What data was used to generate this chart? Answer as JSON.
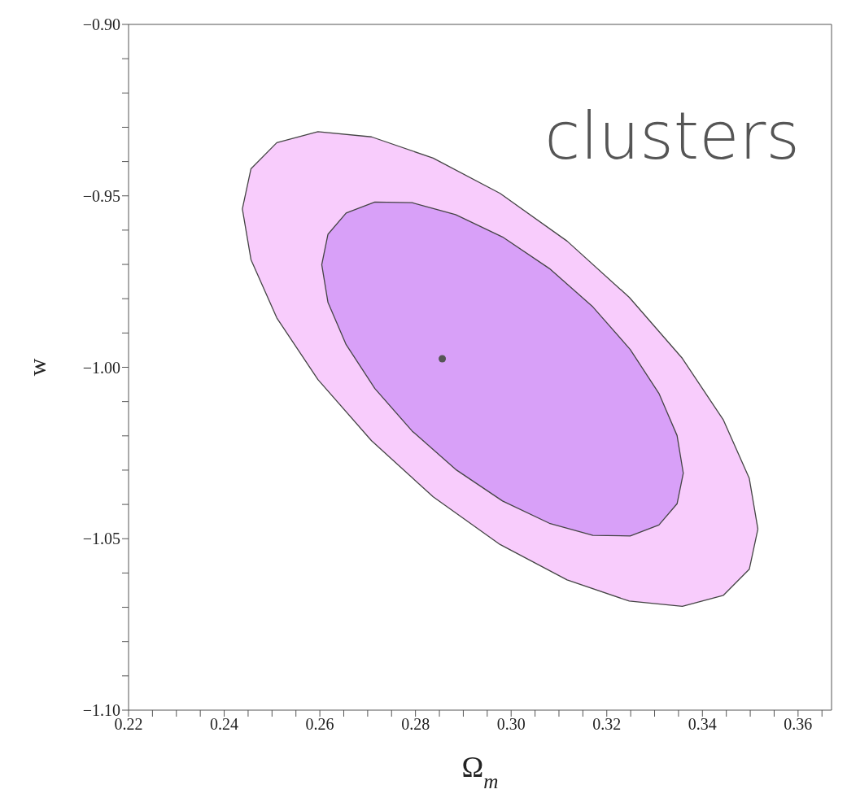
{
  "chart_data": {
    "type": "area",
    "xlabel": "Ω$_{m}$",
    "ylabel": "w",
    "annotations": [
      "clusters"
    ],
    "xlim": [
      0.22,
      0.367
    ],
    "ylim": [
      -1.1,
      -0.9
    ],
    "xticks": [
      0.22,
      {
        "value": 0.225,
        "label": null
      },
      {
        "value": 0.23,
        "label": null
      },
      {
        "value": 0.235,
        "label": null
      },
      0.24,
      {
        "value": 0.245,
        "label": null
      },
      {
        "value": 0.25,
        "label": null
      },
      {
        "value": 0.255,
        "label": null
      },
      0.26,
      {
        "value": 0.265,
        "label": null
      },
      {
        "value": 0.27,
        "label": null
      },
      {
        "value": 0.275,
        "label": null
      },
      0.28,
      {
        "value": 0.285,
        "label": null
      },
      {
        "value": 0.29,
        "label": null
      },
      {
        "value": 0.295,
        "label": null
      },
      {
        "value": 0.3,
        "label": "0.30"
      },
      {
        "value": 0.305,
        "label": null
      },
      {
        "value": 0.31,
        "label": null
      },
      {
        "value": 0.315,
        "label": null
      },
      0.32,
      {
        "value": 0.325,
        "label": null
      },
      {
        "value": 0.33,
        "label": null
      },
      {
        "value": 0.335,
        "label": null
      },
      0.34,
      {
        "value": 0.345,
        "label": null
      },
      {
        "value": 0.35,
        "label": null
      },
      {
        "value": 0.355,
        "label": null
      },
      0.36,
      {
        "value": 0.365,
        "label": null
      }
    ],
    "yticks": [
      {
        "value": -1.1,
        "label": "−1.10"
      },
      {
        "value": -1.09,
        "label": null
      },
      {
        "value": -1.08,
        "label": null
      },
      {
        "value": -1.07,
        "label": null
      },
      {
        "value": -1.06,
        "label": null
      },
      {
        "value": -1.05,
        "label": "−1.05"
      },
      {
        "value": -1.04,
        "label": null
      },
      {
        "value": -1.03,
        "label": null
      },
      {
        "value": -1.02,
        "label": null
      },
      {
        "value": -1.01,
        "label": null
      },
      {
        "value": -1.0,
        "label": "−1.00"
      },
      {
        "value": -0.99,
        "label": null
      },
      {
        "value": -0.98,
        "label": null
      },
      {
        "value": -0.97,
        "label": null
      },
      {
        "value": -0.96,
        "label": null
      },
      {
        "value": -0.95,
        "label": "−0.95"
      },
      {
        "value": -0.94,
        "label": null
      },
      {
        "value": -0.93,
        "label": null
      },
      {
        "value": -0.92,
        "label": null
      },
      {
        "value": -0.91,
        "label": null
      },
      {
        "value": -0.9,
        "label": "−0.90"
      }
    ],
    "grid": false,
    "series": [
      {
        "color": "#f8ccfc",
        "x": [
          0.3516,
          0.3498,
          0.3444,
          0.3358,
          0.3247,
          0.3117,
          0.2977,
          0.2837,
          0.2708,
          0.2596,
          0.251,
          0.2456,
          0.2438,
          0.2456,
          0.251,
          0.2596,
          0.2708,
          0.2837,
          0.2977,
          0.3117,
          0.3247,
          0.3358,
          0.3444,
          0.3498
        ],
        "values": [
          -1.0472,
          -1.0324,
          -1.0154,
          -0.9974,
          -0.9796,
          -0.9632,
          -0.9493,
          -0.939,
          -0.9328,
          -0.9313,
          -0.9345,
          -0.9421,
          -0.9538,
          -0.9686,
          -0.9856,
          -1.0036,
          -1.0214,
          -1.0378,
          -1.0517,
          -1.062,
          -1.0682,
          -1.0697,
          -1.0665,
          -1.0589
        ]
      },
      {
        "color": "#d8a0f8",
        "x": [
          0.336,
          0.3347,
          0.3309,
          0.3249,
          0.3171,
          0.308,
          0.2982,
          0.2884,
          0.2793,
          0.2715,
          0.2655,
          0.2617,
          0.2604,
          0.2617,
          0.2655,
          0.2715,
          0.2793,
          0.2884,
          0.2982,
          0.308,
          0.3171,
          0.3249,
          0.3309,
          0.3347
        ],
        "values": [
          -1.0309,
          -1.0199,
          -1.0076,
          -0.9948,
          -0.9824,
          -0.9712,
          -0.962,
          -0.9555,
          -0.952,
          -0.9518,
          -0.955,
          -0.9612,
          -0.9701,
          -0.9811,
          -0.9934,
          -1.0062,
          -1.0186,
          -1.0298,
          -1.039,
          -1.0455,
          -1.049,
          -1.0492,
          -1.046,
          -1.0398
        ]
      },
      {
        "type": "scatter",
        "color": "#555555",
        "marker": "circle",
        "x": [
          0.2856
        ],
        "values": [
          -0.9975
        ]
      }
    ]
  }
}
